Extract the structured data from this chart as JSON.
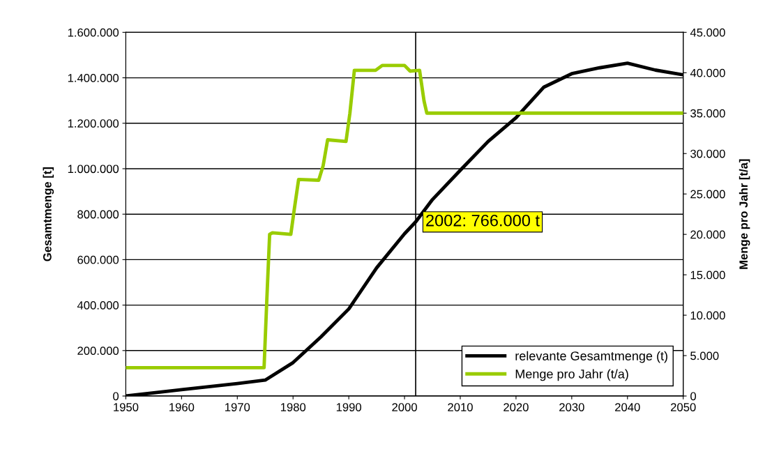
{
  "chart_data": {
    "type": "line",
    "ylabel": "Gesamtmenge [t]",
    "y2label": "Menge pro Jahr [t/a]",
    "xlim": [
      1950,
      2050
    ],
    "xticks": [
      1950,
      1960,
      1970,
      1980,
      1990,
      2000,
      2010,
      2020,
      2030,
      2040,
      2050
    ],
    "ylim": [
      0,
      1600000
    ],
    "yticks": [
      {
        "value": 0,
        "label": "0"
      },
      {
        "value": 200000,
        "label": "200.000"
      },
      {
        "value": 400000,
        "label": "400.000"
      },
      {
        "value": 600000,
        "label": "600.000"
      },
      {
        "value": 800000,
        "label": "800.000"
      },
      {
        "value": 1000000,
        "label": "1.000.000"
      },
      {
        "value": 1200000,
        "label": "1.200.000"
      },
      {
        "value": 1400000,
        "label": "1.400.000"
      },
      {
        "value": 1600000,
        "label": "1.600.000"
      }
    ],
    "y2lim": [
      0,
      45000
    ],
    "y2ticks": [
      {
        "value": 0,
        "label": "0"
      },
      {
        "value": 5000,
        "label": "5.000"
      },
      {
        "value": 10000,
        "label": "10.000"
      },
      {
        "value": 15000,
        "label": "15.000"
      },
      {
        "value": 20000,
        "label": "20.000"
      },
      {
        "value": 25000,
        "label": "25.000"
      },
      {
        "value": 30000,
        "label": "30.000"
      },
      {
        "value": 35000,
        "label": "35.000"
      },
      {
        "value": 40000,
        "label": "40.000"
      },
      {
        "value": 45000,
        "label": "45.000"
      }
    ],
    "grid": "y",
    "legend": "bottom right",
    "marker": "none",
    "line_style": "solid",
    "series": [
      {
        "name": "relevante Gesamtmenge (t)",
        "color": "#000000",
        "x": [
          1950,
          1960,
          1970,
          1975,
          1980,
          1985,
          1990,
          1995,
          2000,
          2002,
          2005,
          2010,
          2015,
          2020,
          2025,
          2030,
          2035,
          2040,
          2045,
          2050
        ],
        "values": [
          0,
          28000,
          55000,
          70000,
          147000,
          260000,
          383000,
          564000,
          714000,
          766000,
          864000,
          993000,
          1120000,
          1224000,
          1359000,
          1418000,
          1444000,
          1464000,
          1434000,
          1413000
        ]
      },
      {
        "name": "Menge pro Jahr (t/a)",
        "color": "#99cc00",
        "axis": "y2",
        "x": [
          1950,
          1974.8,
          1975.3,
          1975.8,
          1976.3,
          1979.6,
          1980.2,
          1981,
          1984.6,
          1985.4,
          1986.2,
          1989.5,
          1990.2,
          1991,
          1994.8,
          1996,
          2000,
          2001,
          2002.7,
          2003.5,
          2004,
          2050
        ],
        "values": [
          3500,
          3500,
          12000,
          20000,
          20200,
          20000,
          23000,
          26800,
          26700,
          28500,
          31700,
          31500,
          35000,
          40300,
          40300,
          40900,
          40900,
          40200,
          40300,
          36500,
          35000,
          35000
        ]
      }
    ],
    "ref_lines": [
      {
        "axis": "x",
        "value": 2002,
        "color": "#000000"
      }
    ],
    "annotations": [
      {
        "text": "2002: 766.000 t",
        "x": 2002,
        "y": 766000
      }
    ]
  }
}
